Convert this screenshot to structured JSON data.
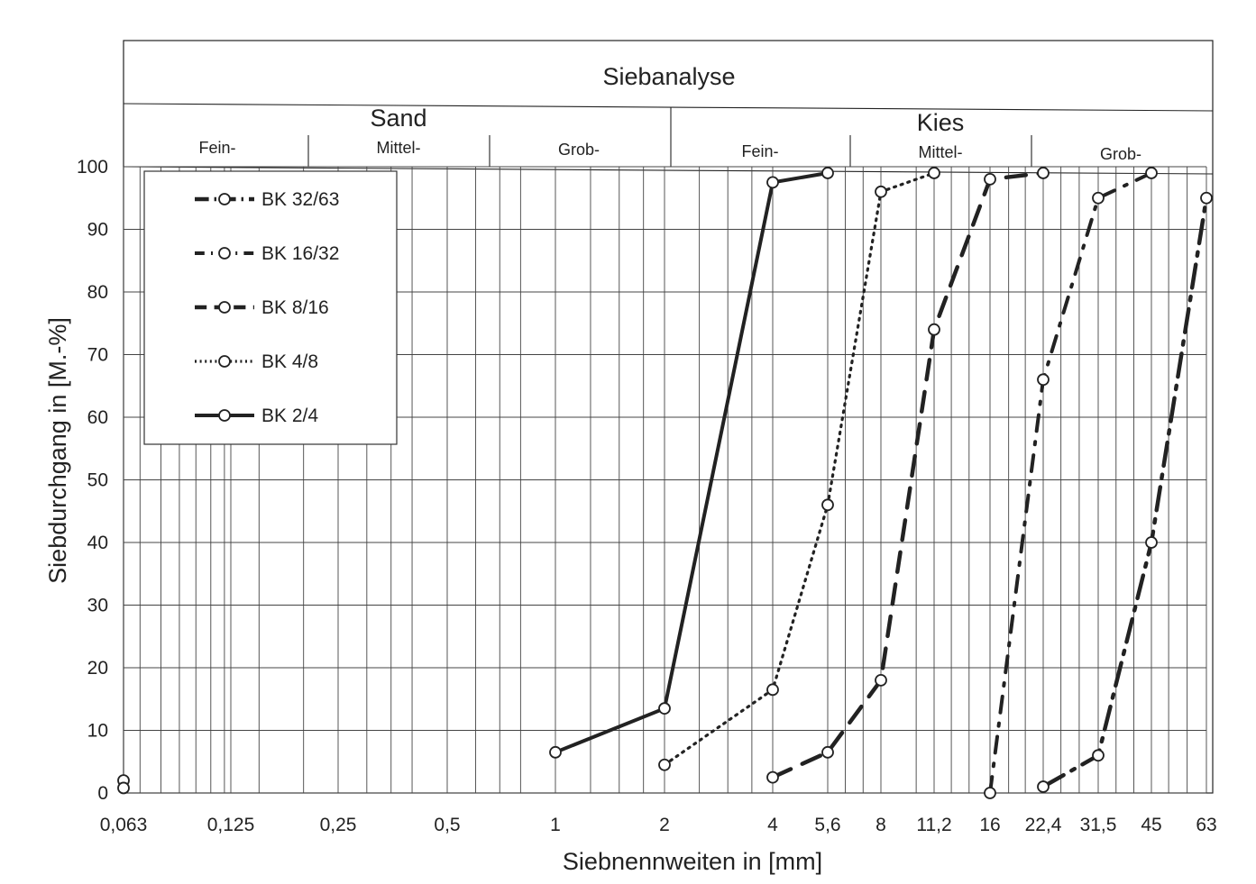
{
  "chart_data": {
    "type": "line",
    "title": "Siebanalyse",
    "xlabel": "Siebnennweiten in [mm]",
    "ylabel": "Siebdurchgang in [M.-%]",
    "x_scale": "log",
    "x_ticks": [
      "0,063",
      "0,125",
      "0,25",
      "0,5",
      "1",
      "2",
      "4",
      "5,6",
      "8",
      "11,2",
      "16",
      "22,4",
      "31,5",
      "45",
      "63"
    ],
    "x_tick_values": [
      0.063,
      0.125,
      0.25,
      0.5,
      1,
      2,
      4,
      5.6,
      8,
      11.2,
      16,
      22.4,
      31.5,
      45,
      63
    ],
    "ylim": [
      0,
      100
    ],
    "y_ticks": [
      0,
      10,
      20,
      30,
      40,
      50,
      60,
      70,
      80,
      90,
      100
    ],
    "grid": true,
    "legend_position": "top-left",
    "groups": [
      {
        "label": "Sand",
        "subgroups": [
          "Fein-",
          "Mittel-",
          "Grob-"
        ]
      },
      {
        "label": "Kies",
        "subgroups": [
          "Fein-",
          "Mittel-",
          "Grob-"
        ]
      }
    ],
    "series": [
      {
        "name": "BK 32/63",
        "style": "dash-dot",
        "x": [
          22.4,
          31.5,
          45,
          63
        ],
        "y": [
          1,
          6,
          40,
          95
        ]
      },
      {
        "name": "BK 16/32",
        "style": "dash-dot-sparse",
        "x": [
          16,
          22.4,
          31.5,
          45
        ],
        "y": [
          0,
          66,
          95,
          99
        ]
      },
      {
        "name": "BK 8/16",
        "style": "dashed",
        "x": [
          4,
          5.6,
          8,
          11.2,
          16,
          22.4
        ],
        "y": [
          2.5,
          6.5,
          18,
          74,
          98,
          99
        ]
      },
      {
        "name": "BK 4/8",
        "style": "dotted",
        "x": [
          2,
          4,
          5.6,
          8,
          11.2
        ],
        "y": [
          4.5,
          16.5,
          46,
          96,
          99
        ]
      },
      {
        "name": "BK 2/4",
        "style": "solid",
        "x": [
          1,
          2,
          4,
          5.6
        ],
        "y": [
          6.5,
          13.5,
          97.5,
          99
        ]
      },
      {
        "name": "",
        "style": "points",
        "x": [
          0.063,
          0.063
        ],
        "y": [
          2,
          0.8
        ]
      }
    ]
  }
}
